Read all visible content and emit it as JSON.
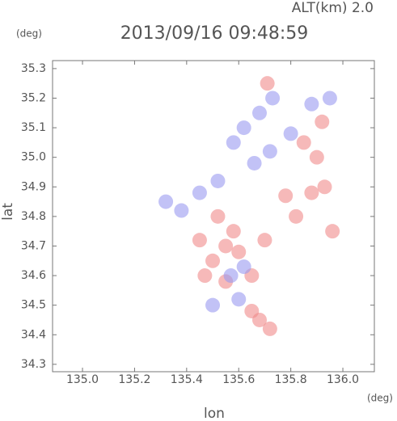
{
  "chart_data": {
    "type": "scatter",
    "title": "2013/09/16 09:48:59",
    "subtitle": "ALT(km) 2.0",
    "y_unit": "(deg)",
    "x_unit": "(deg)",
    "xlabel": "lon",
    "ylabel": "lat",
    "xlim": [
      134.885,
      136.121
    ],
    "ylim": [
      34.275,
      35.327
    ],
    "xticks": [
      {
        "value": 135,
        "label": "135.0"
      },
      135.2,
      135.4,
      135.6,
      135.8,
      {
        "value": 136,
        "label": "136.0"
      }
    ],
    "yticks": [
      34.3,
      34.4,
      34.5,
      34.6,
      34.7,
      34.8,
      34.9,
      {
        "value": 35,
        "label": "35.0"
      },
      35.1,
      35.2,
      35.3
    ],
    "series": [
      {
        "color": "#f08a8a",
        "x": [
          135.71,
          135.9,
          135.93,
          135.88,
          135.78,
          135.96,
          135.55,
          135.5,
          135.45,
          135.6,
          135.52,
          135.55,
          135.65,
          135.7,
          135.68,
          135.72,
          135.65,
          135.85,
          135.92,
          135.82,
          135.47,
          135.58
        ],
        "y": [
          35.25,
          35.0,
          34.9,
          34.88,
          34.87,
          34.75,
          34.7,
          34.65,
          34.72,
          34.68,
          34.8,
          34.58,
          34.6,
          34.72,
          34.45,
          34.42,
          34.48,
          35.05,
          35.12,
          34.8,
          34.6,
          34.75
        ]
      },
      {
        "color": "#9a9af0",
        "x": [
          135.68,
          135.73,
          135.8,
          135.62,
          135.58,
          135.66,
          135.38,
          135.32,
          135.57,
          135.6,
          135.5,
          135.88,
          135.95,
          135.52,
          135.72,
          135.62,
          135.45
        ],
        "y": [
          35.15,
          35.2,
          35.08,
          35.1,
          35.05,
          34.98,
          34.82,
          34.85,
          34.6,
          34.52,
          34.5,
          35.18,
          35.2,
          34.92,
          35.02,
          34.63,
          34.88
        ]
      }
    ]
  }
}
